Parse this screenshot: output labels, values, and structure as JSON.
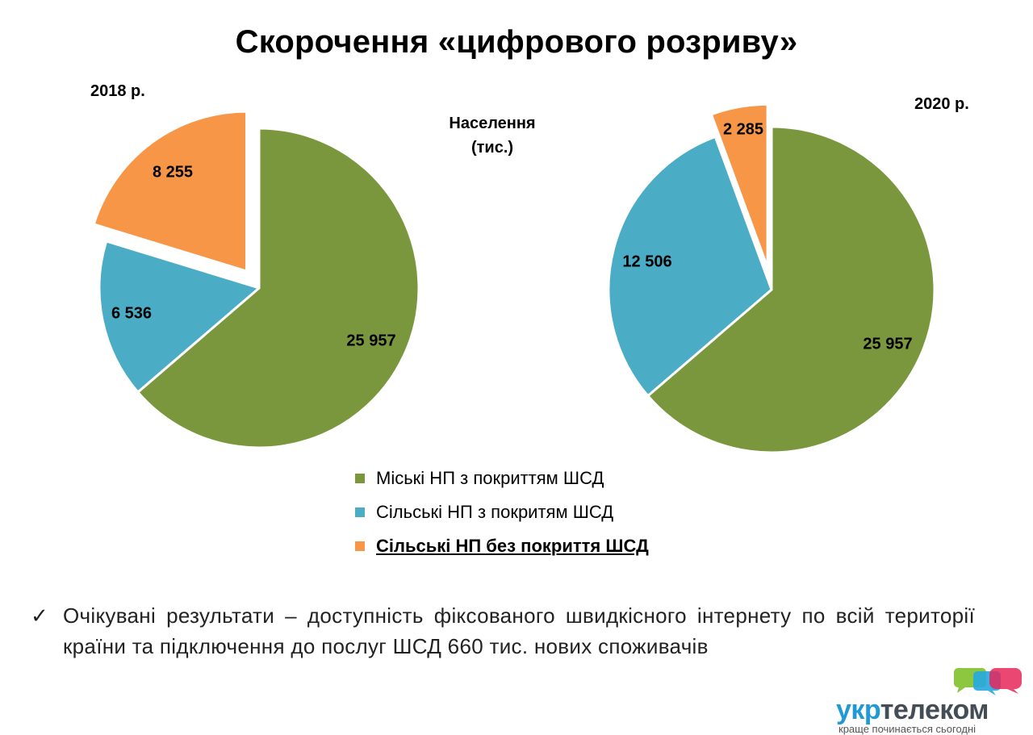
{
  "title": "Скорочення «цифрового розриву»",
  "units_label": "Населення (тис.)",
  "colors": {
    "urban": "#7b973e",
    "rural_covered": "#4aacc5",
    "rural_uncovered": "#f79646"
  },
  "chart_data": [
    {
      "type": "pie",
      "title": "2018 р.",
      "categories": [
        "Міські НП з покриттям ШСД",
        "Сільські НП з покритям ШСД",
        "Сільські НП без  покриття ШСД"
      ],
      "values": [
        25957,
        6536,
        8255
      ],
      "value_labels": [
        "25 957",
        "6 536",
        "8 255"
      ],
      "exploded": [
        false,
        false,
        true
      ],
      "legend": "bottom"
    },
    {
      "type": "pie",
      "title": "2020 р.",
      "categories": [
        "Міські НП з покриттям ШСД",
        "Сільські НП з покритям ШСД",
        "Сільські НП без  покриття ШСД"
      ],
      "values": [
        25957,
        12506,
        2285
      ],
      "value_labels": [
        "25 957",
        "12 506",
        "2 285"
      ],
      "exploded": [
        false,
        false,
        true
      ],
      "legend": "bottom"
    }
  ],
  "legend": [
    {
      "label": "Міські НП з покриттям ШСД",
      "color": "#7b973e",
      "emphasized": false
    },
    {
      "label": "Сільські НП з покритям ШСД",
      "color": "#4aacc5",
      "emphasized": false
    },
    {
      "label": "Сільські НП без  покриття ШСД",
      "color": "#f79646",
      "emphasized": true
    }
  ],
  "note": {
    "check_icon": "check-mark-icon",
    "text": "Очікувані результати – доступність фіксованого швидкісного інтернету по всій території країни та підключення до послуг ШСД 660 тис. нових споживачів"
  },
  "logo": {
    "name_part1": "укр",
    "name_part2": "телеком",
    "tagline": "краще починається сьогодні",
    "icon": "speech-bubbles-icon"
  }
}
